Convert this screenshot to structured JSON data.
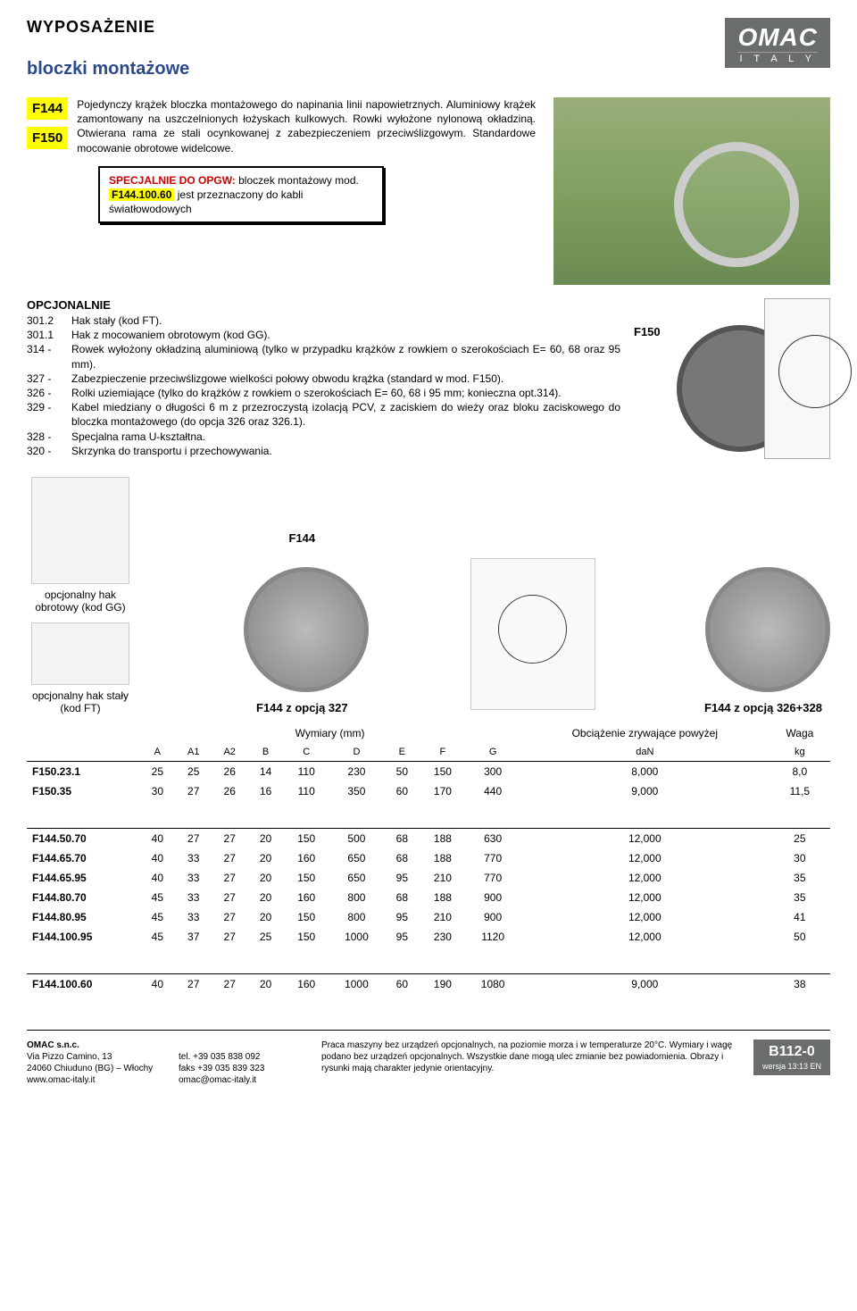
{
  "colors": {
    "accent_yellow": "#ffff00",
    "brand_bg": "#6a6e6a",
    "special_red": "#c00",
    "subtitle_blue": "#2a4a8a"
  },
  "header": {
    "title": "WYPOSAŻENIE",
    "subtitle": "bloczki montażowe",
    "brand": "OMAC",
    "country": "I T A L Y"
  },
  "codes": {
    "c1": "F144",
    "c2": "F150"
  },
  "intro": "Pojedynczy krążek bloczka montażowego do napinania linii napowietrznych. Aluminiowy krążek zamontowany na uszczelnionych łożyskach kulkowych. Rowki wyłożone nylonową okładziną. Otwierana rama ze stali ocynkowanej z zabezpieczeniem przeciwślizgowym. Standardowe mocowanie obrotowe widelcowe.",
  "special": {
    "pre": "SPECJALNIE DO OPGW:",
    "mid1": " bloczek montażowy mod. ",
    "code": "F144.100.60",
    "mid2": " jest przeznaczony do kabli światłowodowych"
  },
  "options": {
    "title": "OPCJONALNIE",
    "items": [
      {
        "code": "301.2",
        "desc": "Hak stały (kod FT)."
      },
      {
        "code": "301.1",
        "desc": "Hak z mocowaniem obrotowym (kod GG)."
      },
      {
        "code": "314 -",
        "desc": "Rowek wyłożony okładziną aluminiową (tylko w przypadku krążków z rowkiem o szerokościach E= 60, 68 oraz 95 mm)."
      },
      {
        "code": "327 -",
        "desc": "Zabezpieczenie przeciwślizgowe wielkości połowy obwodu krążka (standard w mod. F150)."
      },
      {
        "code": "326 -",
        "desc": "Rolki uziemiające (tylko do krążków z rowkiem o szerokościach E= 60, 68 i 95 mm; konieczna opt.314)."
      },
      {
        "code": "329 -",
        "desc": "Kabel miedziany o długości 6 m z przezroczystą izolacją PCV, z zaciskiem do wieży oraz bloku zaciskowego do bloczka montażowego (do opcja 326 oraz 326.1)."
      },
      {
        "code": "328 -",
        "desc": "Specjalna rama U-kształtna."
      },
      {
        "code": "320 -",
        "desc": "Skrzynka do transportu i przechowywania."
      }
    ],
    "label_f150": "F150"
  },
  "captions": {
    "hook_gg": "opcjonalny hak obrotowy (kod GG)",
    "hook_ft": "opcjonalny hak stały (kod FT)",
    "f144": "F144",
    "f144_327": "F144 z opcją 327",
    "f144_326": "F144 z opcją 326+328"
  },
  "table": {
    "head_dim": "Wymiary (mm)",
    "head_load": "Obciążenie zrywające powyżej",
    "head_weight": "Waga",
    "cols": [
      "A",
      "A1",
      "A2",
      "B",
      "C",
      "D",
      "E",
      "F",
      "G",
      "daN",
      "kg"
    ],
    "rows": [
      {
        "name": "F150.23.1",
        "v": [
          "25",
          "25",
          "26",
          "14",
          "110",
          "230",
          "50",
          "150",
          "300",
          "8,000",
          "8,0"
        ]
      },
      {
        "name": "F150.35",
        "v": [
          "30",
          "27",
          "26",
          "16",
          "110",
          "350",
          "60",
          "170",
          "440",
          "9,000",
          "11,5"
        ]
      }
    ],
    "rows2": [
      {
        "name": "F144.50.70",
        "v": [
          "40",
          "27",
          "27",
          "20",
          "150",
          "500",
          "68",
          "188",
          "630",
          "12,000",
          "25"
        ]
      },
      {
        "name": "F144.65.70",
        "v": [
          "40",
          "33",
          "27",
          "20",
          "160",
          "650",
          "68",
          "188",
          "770",
          "12,000",
          "30"
        ]
      },
      {
        "name": "F144.65.95",
        "v": [
          "40",
          "33",
          "27",
          "20",
          "150",
          "650",
          "95",
          "210",
          "770",
          "12,000",
          "35"
        ]
      },
      {
        "name": "F144.80.70",
        "v": [
          "45",
          "33",
          "27",
          "20",
          "160",
          "800",
          "68",
          "188",
          "900",
          "12,000",
          "35"
        ]
      },
      {
        "name": "F144.80.95",
        "v": [
          "45",
          "33",
          "27",
          "20",
          "150",
          "800",
          "95",
          "210",
          "900",
          "12,000",
          "41"
        ]
      },
      {
        "name": "F144.100.95",
        "v": [
          "45",
          "37",
          "27",
          "25",
          "150",
          "1000",
          "95",
          "230",
          "1120",
          "12,000",
          "50"
        ]
      }
    ],
    "rows3": [
      {
        "name": "F144.100.60",
        "v": [
          "40",
          "27",
          "27",
          "20",
          "160",
          "1000",
          "60",
          "190",
          "1080",
          "9,000",
          "38"
        ]
      }
    ]
  },
  "footer": {
    "company": "OMAC s.n.c.",
    "addr1": "Via Pizzo Camino, 13",
    "addr2": "24060 Chiuduno (BG) – Włochy",
    "web": "www.omac-italy.it",
    "tel": "tel. +39 035 838 092",
    "fax": "faks +39 035 839 323",
    "email": "omac@omac-italy.it",
    "note": "Praca maszyny bez urządzeń opcjonalnych, na poziomie morza i w temperaturze 20°C. Wymiary i wagę podano bez urządzeń opcjonalnych. Wszystkie dane mogą ulec zmianie bez powiadomienia. Obrazy i rysunki mają charakter jedynie orientacyjny.",
    "code": "B112-0",
    "ver": "wersja 13:13 EN"
  }
}
